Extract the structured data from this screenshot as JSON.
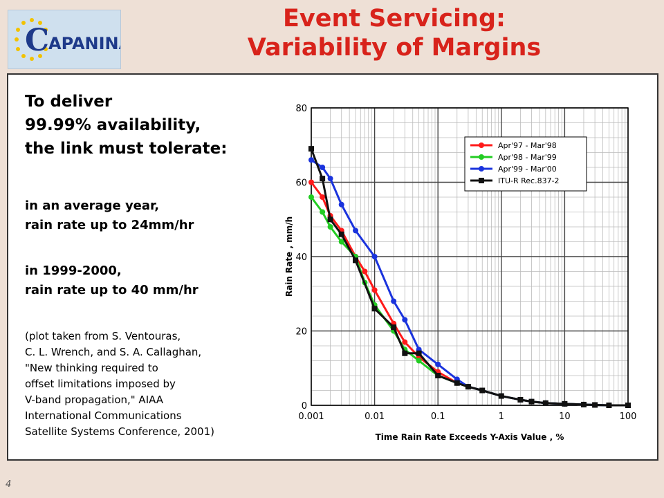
{
  "slide": {
    "title_line1": "Event Servicing:",
    "title_line2": "Variability of Margins",
    "page_number": "4",
    "logo_text": "CAPANINA",
    "colors": {
      "title": "#d8231b",
      "background": "#eee0d6"
    }
  },
  "text": {
    "lead": [
      "To deliver",
      "99.99% availability,",
      "the link must tolerate:"
    ],
    "avg_year": [
      "in an average year,",
      "rain rate up to 24mm/hr"
    ],
    "year_1999": [
      "in 1999-2000,",
      "rain rate up to 40 mm/hr"
    ],
    "citation": [
      "(plot taken from S. Ventouras,",
      "C. L. Wrench, and S. A. Callaghan,",
      "\"New thinking required to",
      "offset limitations imposed by",
      "V-band propagation,\" AIAA",
      "International Communications",
      "Satellite Systems Conference, 2001)"
    ]
  },
  "chart_data": {
    "type": "line",
    "xscale": "log",
    "xlabel": "Time Rain Rate Exceeds Y-Axis Value , %",
    "ylabel": "Rain Rate , mm/h",
    "xlim": [
      0.001,
      100
    ],
    "ylim": [
      0,
      80
    ],
    "xticks": [
      {
        "value": 0.001,
        "label": "0.001"
      },
      {
        "value": 0.01,
        "label": "0.01"
      },
      {
        "value": 0.1,
        "label": "0.1"
      },
      {
        "value": 1,
        "label": "1"
      },
      {
        "value": 10,
        "label": "10"
      },
      {
        "value": 100,
        "label": "100"
      }
    ],
    "yticks": [
      {
        "value": 0,
        "label": "0"
      },
      {
        "value": 20,
        "label": "20"
      },
      {
        "value": 40,
        "label": "40"
      },
      {
        "value": 60,
        "label": "60"
      },
      {
        "value": 80,
        "label": "80"
      }
    ],
    "grid": true,
    "legend_position": "top-right",
    "series": [
      {
        "name": "Apr'97 - Mar'98",
        "color": "#ff1a1a",
        "marker": "circle",
        "points": [
          [
            0.001,
            60
          ],
          [
            0.0015,
            56
          ],
          [
            0.002,
            51
          ],
          [
            0.003,
            47
          ],
          [
            0.005,
            40
          ],
          [
            0.007,
            36
          ],
          [
            0.01,
            31
          ],
          [
            0.02,
            22
          ],
          [
            0.03,
            17
          ],
          [
            0.05,
            13
          ],
          [
            0.1,
            9
          ],
          [
            0.2,
            6
          ],
          [
            0.3,
            5
          ],
          [
            0.5,
            4
          ],
          [
            1,
            2.5
          ],
          [
            2,
            1.5
          ],
          [
            3,
            1
          ],
          [
            5,
            0.6
          ],
          [
            10,
            0.4
          ],
          [
            20,
            0.2
          ],
          [
            30,
            0.1
          ],
          [
            50,
            0
          ],
          [
            100,
            0
          ]
        ]
      },
      {
        "name": "Apr'98 - Mar'99",
        "color": "#22cc22",
        "marker": "circle",
        "points": [
          [
            0.001,
            56
          ],
          [
            0.0015,
            52
          ],
          [
            0.002,
            48
          ],
          [
            0.003,
            44
          ],
          [
            0.005,
            40
          ],
          [
            0.007,
            33
          ],
          [
            0.01,
            27
          ],
          [
            0.02,
            20
          ],
          [
            0.03,
            15
          ],
          [
            0.05,
            12
          ],
          [
            0.1,
            8
          ],
          [
            0.2,
            6
          ],
          [
            0.3,
            5
          ],
          [
            0.5,
            4
          ],
          [
            1,
            2.5
          ],
          [
            2,
            1.5
          ],
          [
            3,
            1
          ],
          [
            5,
            0.6
          ],
          [
            10,
            0.4
          ],
          [
            20,
            0.2
          ],
          [
            30,
            0.1
          ],
          [
            50,
            0
          ],
          [
            100,
            0
          ]
        ]
      },
      {
        "name": "Apr'99 - Mar'00",
        "color": "#1a33dd",
        "marker": "circle",
        "points": [
          [
            0.001,
            66
          ],
          [
            0.0015,
            64
          ],
          [
            0.002,
            61
          ],
          [
            0.003,
            54
          ],
          [
            0.005,
            47
          ],
          [
            0.01,
            40
          ],
          [
            0.02,
            28
          ],
          [
            0.03,
            23
          ],
          [
            0.05,
            15
          ],
          [
            0.1,
            11
          ],
          [
            0.2,
            7
          ],
          [
            0.3,
            5
          ],
          [
            0.5,
            4
          ],
          [
            1,
            2.5
          ],
          [
            2,
            1.5
          ],
          [
            3,
            1
          ],
          [
            5,
            0.6
          ],
          [
            10,
            0.4
          ],
          [
            20,
            0.2
          ],
          [
            30,
            0.1
          ],
          [
            50,
            0
          ],
          [
            100,
            0
          ]
        ]
      },
      {
        "name": "ITU-R Rec.837-2",
        "color": "#111111",
        "marker": "square",
        "points": [
          [
            0.001,
            69
          ],
          [
            0.0015,
            61
          ],
          [
            0.002,
            50
          ],
          [
            0.003,
            46
          ],
          [
            0.005,
            39
          ],
          [
            0.01,
            26
          ],
          [
            0.02,
            21
          ],
          [
            0.03,
            14
          ],
          [
            0.05,
            14
          ],
          [
            0.1,
            8
          ],
          [
            0.2,
            6
          ],
          [
            0.3,
            5
          ],
          [
            0.5,
            4
          ],
          [
            1,
            2.5
          ],
          [
            2,
            1.5
          ],
          [
            3,
            1
          ],
          [
            5,
            0.6
          ],
          [
            10,
            0.4
          ],
          [
            20,
            0.2
          ],
          [
            30,
            0.1
          ],
          [
            50,
            0
          ],
          [
            100,
            0
          ]
        ]
      }
    ]
  }
}
